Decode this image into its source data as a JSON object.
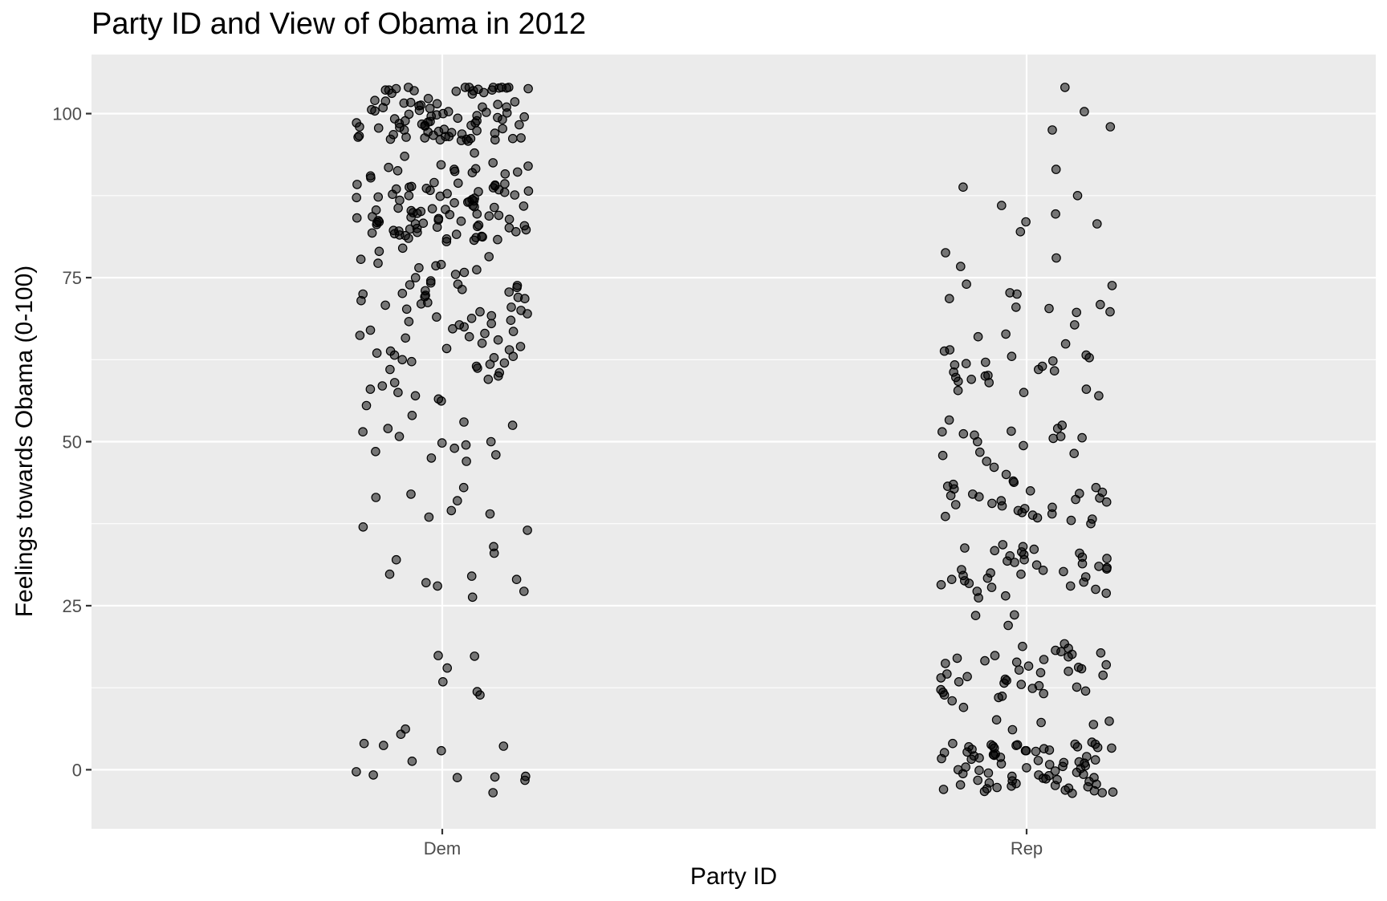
{
  "chart_data": {
    "type": "scatter",
    "title": "Party ID and View of Obama in 2012",
    "xlabel": "Party ID",
    "ylabel": "Feelings towards Obama (0-100)",
    "categories": [
      "Dem",
      "Rep"
    ],
    "ylim": [
      -9,
      109
    ],
    "yticks": [
      0,
      25,
      50,
      75,
      100
    ],
    "grid": true,
    "jitter": true,
    "point_color": "#000000",
    "point_alpha": 0.5,
    "panel_background": "#ebebeb",
    "series": [
      {
        "category": "Dem",
        "values": [
          104,
          104,
          104,
          103.8,
          103.5,
          103,
          103.6,
          104,
          103.7,
          103.9,
          103.2,
          103.5,
          104,
          103.6,
          103.4,
          103.8,
          103.1,
          103.6,
          103.9,
          104,
          102,
          101.5,
          101,
          101.2,
          101.6,
          100.5,
          101.8,
          101,
          102.3,
          100.8,
          101.4,
          101.9,
          100.9,
          101.7,
          101.3,
          100,
          99.5,
          99.8,
          100.2,
          99.2,
          99.6,
          100.1,
          99.4,
          99.9,
          100.3,
          99.1,
          99.7,
          100.4,
          99.3,
          100.6,
          98.6,
          98.2,
          98.9,
          97.9,
          98.4,
          98.1,
          98.7,
          98.3,
          98.8,
          98,
          98.5,
          97.8,
          98.2,
          98.6,
          98.9,
          97.5,
          97.2,
          96.8,
          97,
          97.3,
          96.5,
          97.7,
          96.9,
          97.4,
          96.6,
          97.1,
          96.7,
          97.6,
          96.2,
          96.4,
          96,
          96.3,
          96.1,
          96.5,
          96.2,
          95.9,
          96.4,
          96.1,
          95.8,
          96.3,
          96,
          94,
          93.5,
          92.5,
          92,
          92.2,
          91.8,
          91.5,
          91,
          90.8,
          91.2,
          91.6,
          90.5,
          91.1,
          90.2,
          91.3,
          89.5,
          89,
          88.8,
          89.3,
          88.5,
          89.1,
          88.6,
          88.3,
          89.2,
          88.9,
          88.1,
          88.4,
          88.7,
          88.2,
          89.4,
          88,
          87.5,
          87.2,
          86.8,
          87.8,
          86.5,
          87.1,
          86.9,
          87.4,
          86.6,
          87.6,
          86.7,
          87.3,
          86.4,
          87.7,
          86,
          85.5,
          85.2,
          85.8,
          84.8,
          85.1,
          85.6,
          84.9,
          85.3,
          84.6,
          85.9,
          84.7,
          85.4,
          84.5,
          85.7,
          84.2,
          83.8,
          84,
          83.5,
          83.9,
          83.2,
          84.1,
          83.6,
          83.3,
          84.3,
          83.7,
          83.1,
          83.4,
          84.4,
          83,
          82.8,
          82.5,
          82.2,
          82.7,
          82,
          82.4,
          81.8,
          82.6,
          81.9,
          82.3,
          81.7,
          82.1,
          81.6,
          82.9,
          81.5,
          81.2,
          81,
          80.8,
          81.4,
          80.5,
          81.3,
          80.9,
          81.1,
          80.7,
          79.5,
          79,
          78.2,
          77.8,
          77.2,
          77,
          76.8,
          76.5,
          76.2,
          75.8,
          75.5,
          75,
          74.5,
          74.2,
          74,
          73.9,
          73.8,
          73.5,
          73.2,
          73,
          72.8,
          72.6,
          72.5,
          72.3,
          72.1,
          72,
          71.8,
          71.5,
          71.2,
          71,
          70.8,
          70.5,
          70.2,
          70,
          69.8,
          69.5,
          69.2,
          69,
          68.8,
          68.5,
          68.3,
          68,
          67.8,
          67.5,
          67.2,
          67,
          66.8,
          66.5,
          66.2,
          66,
          65.8,
          65.5,
          65,
          64.5,
          64.2,
          64,
          63.8,
          63.5,
          63.2,
          63,
          62.8,
          62.5,
          62.2,
          62,
          61.8,
          61.5,
          61.2,
          61,
          60.5,
          60,
          59.5,
          59,
          58.5,
          58,
          57.5,
          57,
          56.5,
          56.2,
          55.5,
          54,
          53,
          52.5,
          52,
          51.5,
          50.8,
          50,
          49.8,
          49.5,
          49,
          48.5,
          48,
          47.5,
          47,
          43,
          42,
          41.5,
          41,
          39.5,
          39,
          38.5,
          37,
          36.5,
          34,
          33,
          32,
          29.8,
          29.5,
          29,
          28.5,
          28,
          27.2,
          26.3,
          17.4,
          17.3,
          15.5,
          13.4,
          11.9,
          11.4,
          6.2,
          5.4,
          4,
          3.7,
          3.6,
          2.9,
          1.3,
          -0.3,
          -0.8,
          -1,
          -1.1,
          -1.2,
          -1.6,
          -3.5
        ]
      },
      {
        "category": "Rep",
        "values": [
          104,
          100.3,
          98,
          97.5,
          91.5,
          88.8,
          87.5,
          86,
          84.7,
          83.5,
          83.2,
          82,
          78.8,
          78,
          76.7,
          74,
          73.8,
          72.7,
          72.5,
          71.8,
          70.9,
          70.5,
          70.3,
          69.8,
          69.7,
          67.8,
          66.4,
          66,
          64.9,
          64,
          63.8,
          63.2,
          63,
          62.8,
          62.3,
          62.1,
          61.9,
          61.7,
          61.5,
          61,
          60.8,
          60.6,
          60.1,
          60,
          59.8,
          59.5,
          59.2,
          59,
          58,
          57.8,
          57.5,
          57,
          53.3,
          52.5,
          52,
          51.6,
          51.5,
          51.2,
          51,
          50.8,
          50.6,
          50.5,
          50,
          49.4,
          48.4,
          48.2,
          47.9,
          47,
          46.1,
          45,
          44,
          43.8,
          43.5,
          43.2,
          43,
          42.8,
          42.5,
          42.3,
          42.1,
          42,
          41.8,
          41.6,
          41.4,
          41.2,
          41,
          40.8,
          40.6,
          40.4,
          40.2,
          40,
          39.8,
          39.5,
          39.2,
          39,
          38.8,
          38.6,
          38.4,
          38.2,
          38,
          37.5,
          34.3,
          34,
          33.8,
          33.6,
          33.4,
          33.2,
          33,
          32.8,
          32.6,
          32.4,
          32.2,
          32,
          31.8,
          31.6,
          31.4,
          31.2,
          31,
          30.8,
          30.6,
          30.5,
          30.4,
          30.2,
          30,
          29.8,
          29.6,
          29.4,
          29.2,
          29,
          28.8,
          28.6,
          28.4,
          28.2,
          28,
          27.8,
          27.5,
          27.2,
          26.9,
          26.5,
          26.2,
          23.6,
          23.5,
          22,
          19.2,
          18.8,
          18.5,
          18.2,
          18,
          17.8,
          17.6,
          17.4,
          17.2,
          17,
          16.8,
          16.6,
          16.4,
          16.2,
          16,
          15.8,
          15.6,
          15.4,
          15.2,
          15,
          14.8,
          14.6,
          14.4,
          14.2,
          14,
          13.8,
          13.6,
          13.4,
          13.2,
          13,
          12.8,
          12.6,
          12.4,
          12.2,
          12,
          11.8,
          11.6,
          11.4,
          11.2,
          11,
          10.5,
          9.5,
          7.6,
          7.4,
          7.2,
          6.9,
          6.1,
          4.2,
          4,
          3.9,
          3.8,
          3.7,
          3.6,
          3.5,
          3.4,
          3.3,
          3.2,
          3.1,
          3,
          2.9,
          2.8,
          2.6,
          2.4,
          2.2,
          2,
          1.8,
          1.6,
          1.4,
          1.2,
          1,
          0.8,
          0.6,
          0.4,
          0.2,
          0,
          -0.2,
          -0.4,
          -0.6,
          -0.8,
          -1,
          -1.2,
          -1.4,
          -1.6,
          -1.8,
          -2,
          -2.2,
          -2.4,
          -2.6,
          -2.8,
          -3,
          -3.2,
          -3.4,
          -3.6,
          3.8,
          3.5,
          2.7,
          2.1,
          1.9,
          1.5,
          0.9,
          0.5,
          -0.1,
          -0.5,
          -0.9,
          -1.3,
          -1.7,
          -2.1,
          -2.5,
          -2.9,
          -3.3,
          -3.5,
          -3.1,
          -2.7,
          -2.3,
          -1.5,
          -0.7,
          0.3,
          1.1,
          1.7,
          2.3,
          2.9,
          3.3,
          3.9
        ]
      }
    ]
  }
}
